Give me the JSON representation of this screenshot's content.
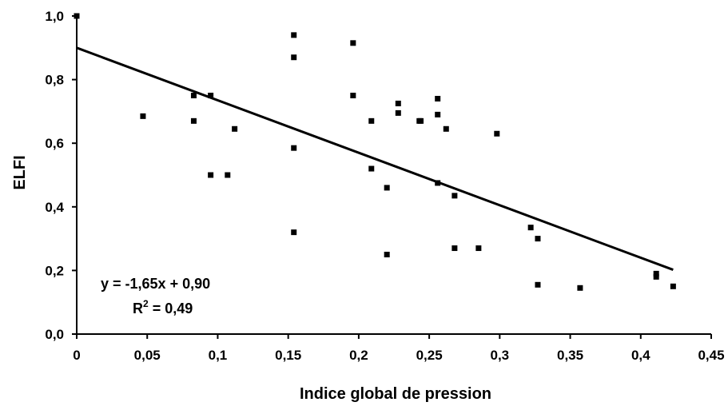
{
  "chart_data": {
    "type": "scatter",
    "xlabel": "Indice global de pression",
    "ylabel": "ELFI",
    "xlim": [
      0,
      0.45
    ],
    "ylim": [
      0,
      1.0
    ],
    "x_ticks": [
      "0",
      "0,05",
      "0,1",
      "0,15",
      "0,2",
      "0,25",
      "0,3",
      "0,35",
      "0,4",
      "0,45"
    ],
    "y_ticks": [
      "0,0",
      "0,2",
      "0,4",
      "0,6",
      "0,8",
      "1,0"
    ],
    "grid": false,
    "marker_color": "#000000",
    "points": [
      {
        "x": 0.0,
        "y": 1.0
      },
      {
        "x": 0.047,
        "y": 0.685
      },
      {
        "x": 0.083,
        "y": 0.75
      },
      {
        "x": 0.083,
        "y": 0.67
      },
      {
        "x": 0.095,
        "y": 0.75
      },
      {
        "x": 0.095,
        "y": 0.5
      },
      {
        "x": 0.107,
        "y": 0.5
      },
      {
        "x": 0.112,
        "y": 0.645
      },
      {
        "x": 0.154,
        "y": 0.94
      },
      {
        "x": 0.154,
        "y": 0.87
      },
      {
        "x": 0.154,
        "y": 0.585
      },
      {
        "x": 0.154,
        "y": 0.32
      },
      {
        "x": 0.196,
        "y": 0.915
      },
      {
        "x": 0.196,
        "y": 0.75
      },
      {
        "x": 0.209,
        "y": 0.67
      },
      {
        "x": 0.209,
        "y": 0.52
      },
      {
        "x": 0.22,
        "y": 0.46
      },
      {
        "x": 0.22,
        "y": 0.25
      },
      {
        "x": 0.228,
        "y": 0.725
      },
      {
        "x": 0.228,
        "y": 0.695
      },
      {
        "x": 0.243,
        "y": 0.67
      },
      {
        "x": 0.244,
        "y": 0.67
      },
      {
        "x": 0.256,
        "y": 0.74
      },
      {
        "x": 0.256,
        "y": 0.69
      },
      {
        "x": 0.256,
        "y": 0.475
      },
      {
        "x": 0.262,
        "y": 0.645
      },
      {
        "x": 0.268,
        "y": 0.435
      },
      {
        "x": 0.268,
        "y": 0.27
      },
      {
        "x": 0.285,
        "y": 0.27
      },
      {
        "x": 0.298,
        "y": 0.63
      },
      {
        "x": 0.322,
        "y": 0.335
      },
      {
        "x": 0.327,
        "y": 0.3
      },
      {
        "x": 0.327,
        "y": 0.155
      },
      {
        "x": 0.357,
        "y": 0.145
      },
      {
        "x": 0.411,
        "y": 0.19
      },
      {
        "x": 0.411,
        "y": 0.18
      },
      {
        "x": 0.423,
        "y": 0.15
      }
    ],
    "trendline": {
      "slope": -1.65,
      "intercept": 0.9,
      "x_range": [
        0,
        0.423
      ],
      "equation_label": "y = -1,65x + 0,90",
      "r2_prefix": "R",
      "r2_sup": "2",
      "r2_suffix": " = 0,49"
    }
  }
}
